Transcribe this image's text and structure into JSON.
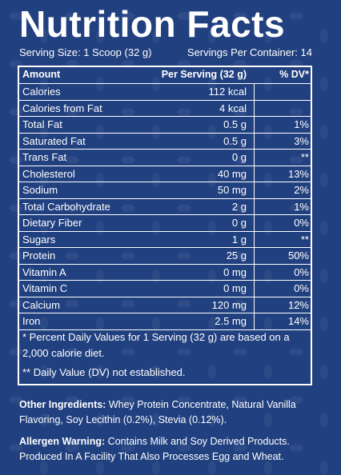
{
  "title": "Nutrition Facts",
  "serving_size": "Serving Size: 1 Scoop (32 g)",
  "servings_per_container": "Servings Per Container: 14",
  "header": {
    "amount": "Amount",
    "per_serving": "Per Serving (32 g)",
    "dv": "% DV*"
  },
  "rows": [
    {
      "name": "Calories",
      "amount": "112 kcal",
      "dv": ""
    },
    {
      "name": "Calories from Fat",
      "amount": "4 kcal",
      "dv": ""
    },
    {
      "name": "Total Fat",
      "amount": "0.5 g",
      "dv": "1%"
    },
    {
      "name": "Saturated Fat",
      "amount": "0.5 g",
      "dv": "3%"
    },
    {
      "name": "Trans Fat",
      "amount": "0 g",
      "dv": "**"
    },
    {
      "name": "Cholesterol",
      "amount": "40 mg",
      "dv": "13%"
    },
    {
      "name": "Sodium",
      "amount": "50 mg",
      "dv": "2%"
    },
    {
      "name": "Total Carbohydrate",
      "amount": "2 g",
      "dv": "1%"
    },
    {
      "name": "Dietary Fiber",
      "amount": "0 g",
      "dv": "0%"
    },
    {
      "name": "Sugars",
      "amount": "1 g",
      "dv": "**"
    },
    {
      "name": "Protein",
      "amount": "25 g",
      "dv": "50%"
    },
    {
      "name": "Vitamin A",
      "amount": "0 mg",
      "dv": "0%"
    },
    {
      "name": "Vitamin C",
      "amount": "0 mg",
      "dv": "0%"
    },
    {
      "name": "Calcium",
      "amount": "120 mg",
      "dv": "12%"
    },
    {
      "name": "Iron",
      "amount": "2.5 mg",
      "dv": "14%"
    }
  ],
  "footnote_1": "* Percent Daily Values for 1 Serving (32 g) are based on a 2,000 calorie diet.",
  "footnote_2": "** Daily Value (DV) not established.",
  "ingredients_label": "Other Ingredients:",
  "ingredients_text": " Whey Protein Concentrate, Natural Vanilla Flavoring, Soy Lecithin (0.2%), Stevia (0.12%).",
  "allergen_label": "Allergen Warning:",
  "allergen_text": " Contains Milk and Soy Derived Products. Produced In A Facility That Also Processes Egg and Wheat.",
  "colors": {
    "background": "#21407f",
    "text": "#ffffff"
  }
}
